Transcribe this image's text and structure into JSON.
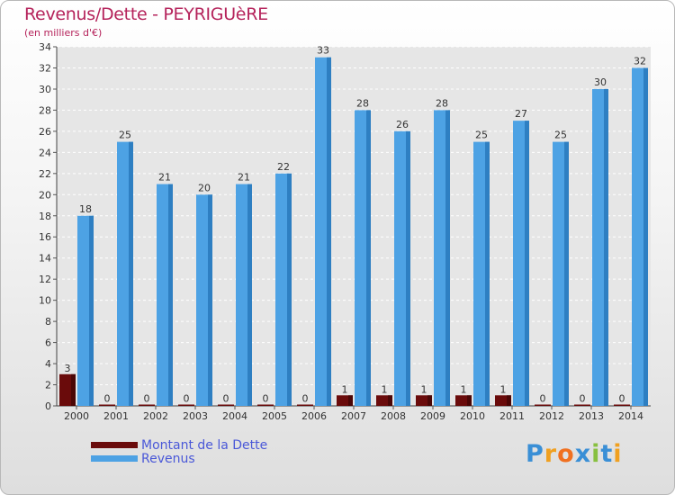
{
  "header": {
    "title": "Revenus/Dette - PEYRIGUèRE",
    "subtitle": "(en milliers d'€)"
  },
  "legend": {
    "items": [
      {
        "label": "Montant de la Dette",
        "color": "#6a0b0b"
      },
      {
        "label": "Revenus",
        "color": "#4da2e4"
      }
    ]
  },
  "logo": {
    "letters": [
      "P",
      "r",
      "o",
      "x",
      "i",
      "t",
      "i"
    ],
    "colors": [
      "#3a8fd6",
      "#f0a020",
      "#f07020",
      "#3a8fd6",
      "#88c040",
      "#3a8fd6",
      "#f0a020"
    ]
  },
  "chart_data": {
    "type": "bar",
    "title": "Revenus/Dette - PEYRIGUèRE",
    "ylabel": "(en milliers d'€)",
    "categories": [
      "2000",
      "2001",
      "2002",
      "2003",
      "2004",
      "2005",
      "2006",
      "2007",
      "2008",
      "2009",
      "2010",
      "2011",
      "2012",
      "2013",
      "2014"
    ],
    "series": [
      {
        "name": "Montant de la Dette",
        "color": "#6a0b0b",
        "values": [
          3,
          0,
          0,
          0,
          0,
          0,
          0,
          1,
          1,
          1,
          1,
          1,
          0,
          0,
          0
        ]
      },
      {
        "name": "Revenus",
        "color": "#4da2e4",
        "values": [
          18,
          25,
          21,
          20,
          21,
          22,
          33,
          28,
          26,
          28,
          25,
          27,
          25,
          30,
          32
        ]
      }
    ],
    "ylim": [
      0,
      34
    ],
    "yticks": [
      0,
      2,
      4,
      6,
      8,
      10,
      12,
      14,
      16,
      18,
      20,
      22,
      24,
      26,
      28,
      30,
      32,
      34
    ],
    "grid": true
  }
}
